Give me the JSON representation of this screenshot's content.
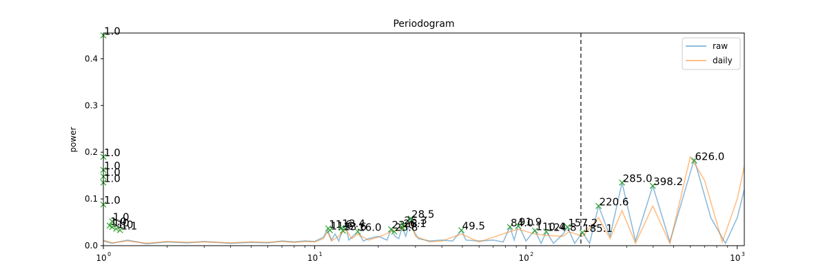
{
  "chart_data": {
    "type": "line",
    "title": "Periodogram",
    "xlabel": "",
    "ylabel": "power",
    "xscale": "log",
    "xlim": [
      1,
      1080
    ],
    "ylim": [
      0,
      0.455
    ],
    "x_ticks": [
      {
        "value": 1,
        "base": "10",
        "exp": "0"
      },
      {
        "value": 10,
        "base": "10",
        "exp": "1"
      },
      {
        "value": 100,
        "base": "10",
        "exp": "2"
      },
      {
        "value": 1000,
        "base": "10",
        "exp": "3"
      }
    ],
    "y_ticks": [
      "0.0",
      "0.1",
      "0.2",
      "0.3",
      "0.4"
    ],
    "legend": {
      "placement": "top-right",
      "entries": [
        {
          "name": "raw",
          "color": "#1f77b4"
        },
        {
          "name": "daily",
          "color": "#ff7f0e"
        }
      ]
    },
    "vline_x": 182,
    "series": [
      {
        "name": "raw",
        "color": "#1f77b4",
        "points": [
          [
            1,
            0.01
          ],
          [
            1.1,
            0.005
          ],
          [
            1.3,
            0.012
          ],
          [
            1.6,
            0.004
          ],
          [
            2,
            0.008
          ],
          [
            2.5,
            0.006
          ],
          [
            3,
            0.009
          ],
          [
            4,
            0.005
          ],
          [
            5,
            0.007
          ],
          [
            6,
            0.006
          ],
          [
            7,
            0.01
          ],
          [
            8,
            0.008
          ],
          [
            9,
            0.01
          ],
          [
            10,
            0.009
          ],
          [
            11,
            0.018
          ],
          [
            11.5,
            0.035
          ],
          [
            12,
            0.012
          ],
          [
            12.5,
            0.025
          ],
          [
            13,
            0.01
          ],
          [
            13.5,
            0.03
          ],
          [
            14,
            0.045
          ],
          [
            14.5,
            0.012
          ],
          [
            15,
            0.018
          ],
          [
            16,
            0.03
          ],
          [
            17,
            0.01
          ],
          [
            18,
            0.015
          ],
          [
            20,
            0.02
          ],
          [
            22,
            0.012
          ],
          [
            23,
            0.035
          ],
          [
            24,
            0.02
          ],
          [
            25,
            0.015
          ],
          [
            26,
            0.04
          ],
          [
            27,
            0.02
          ],
          [
            28.5,
            0.058
          ],
          [
            29.5,
            0.03
          ],
          [
            31,
            0.015
          ],
          [
            35,
            0.01
          ],
          [
            40,
            0.012
          ],
          [
            45,
            0.01
          ],
          [
            49.5,
            0.033
          ],
          [
            52,
            0.012
          ],
          [
            60,
            0.01
          ],
          [
            70,
            0.012
          ],
          [
            78,
            0.008
          ],
          [
            84,
            0.04
          ],
          [
            88,
            0.012
          ],
          [
            92,
            0.045
          ],
          [
            100,
            0.01
          ],
          [
            110,
            0.033
          ],
          [
            118,
            0.005
          ],
          [
            124.8,
            0.03
          ],
          [
            135,
            0.005
          ],
          [
            150,
            0.025
          ],
          [
            157.2,
            0.04
          ],
          [
            170,
            0.005
          ],
          [
            185.1,
            0.028
          ],
          [
            200,
            0.005
          ],
          [
            220.6,
            0.085
          ],
          [
            250,
            0.02
          ],
          [
            285,
            0.135
          ],
          [
            330,
            0.01
          ],
          [
            398.2,
            0.128
          ],
          [
            480,
            0.008
          ],
          [
            626,
            0.185
          ],
          [
            750,
            0.06
          ],
          [
            880,
            0.005
          ],
          [
            1000,
            0.06
          ],
          [
            1080,
            0.12
          ]
        ]
      },
      {
        "name": "daily",
        "color": "#ff7f0e",
        "points": [
          [
            1,
            0.012
          ],
          [
            1.1,
            0.006
          ],
          [
            1.3,
            0.01
          ],
          [
            1.6,
            0.005
          ],
          [
            2,
            0.009
          ],
          [
            2.5,
            0.007
          ],
          [
            3,
            0.008
          ],
          [
            4,
            0.006
          ],
          [
            5,
            0.008
          ],
          [
            6,
            0.007
          ],
          [
            7,
            0.009
          ],
          [
            8,
            0.007
          ],
          [
            9,
            0.009
          ],
          [
            10,
            0.008
          ],
          [
            11,
            0.015
          ],
          [
            11.5,
            0.03
          ],
          [
            12,
            0.01
          ],
          [
            13,
            0.02
          ],
          [
            14,
            0.035
          ],
          [
            15,
            0.015
          ],
          [
            16,
            0.025
          ],
          [
            18,
            0.012
          ],
          [
            20,
            0.018
          ],
          [
            23,
            0.03
          ],
          [
            26,
            0.035
          ],
          [
            28.5,
            0.05
          ],
          [
            30,
            0.02
          ],
          [
            35,
            0.008
          ],
          [
            40,
            0.01
          ],
          [
            49.5,
            0.025
          ],
          [
            60,
            0.008
          ],
          [
            84,
            0.03
          ],
          [
            92,
            0.035
          ],
          [
            110,
            0.025
          ],
          [
            124.8,
            0.022
          ],
          [
            150,
            0.02
          ],
          [
            160,
            0.03
          ],
          [
            185.1,
            0.02
          ],
          [
            220.6,
            0.06
          ],
          [
            250,
            0.015
          ],
          [
            285,
            0.075
          ],
          [
            330,
            0.005
          ],
          [
            398.2,
            0.085
          ],
          [
            480,
            0.005
          ],
          [
            600,
            0.19
          ],
          [
            700,
            0.14
          ],
          [
            850,
            0.008
          ],
          [
            1000,
            0.1
          ],
          [
            1080,
            0.17
          ]
        ]
      }
    ],
    "peaks": [
      {
        "x": 1.0,
        "y": 0.45,
        "label": "1.0"
      },
      {
        "x": 1.0,
        "y": 0.19,
        "label": "1.0"
      },
      {
        "x": 1.0,
        "y": 0.162,
        "label": "1.0"
      },
      {
        "x": 1.0,
        "y": 0.148,
        "label": "1.0"
      },
      {
        "x": 1.0,
        "y": 0.135,
        "label": "1.0"
      },
      {
        "x": 1.0,
        "y": 0.088,
        "label": "1.0"
      },
      {
        "x": 1.1,
        "y": 0.052,
        "label": "1.0"
      },
      {
        "x": 1.07,
        "y": 0.043,
        "label": "1.0"
      },
      {
        "x": 1.1,
        "y": 0.04,
        "label": "1.0"
      },
      {
        "x": 1.15,
        "y": 0.036,
        "label": "1.0"
      },
      {
        "x": 1.2,
        "y": 0.033,
        "label": "1.1"
      },
      {
        "x": 11.6,
        "y": 0.037,
        "label": "11.6"
      },
      {
        "x": 11.8,
        "y": 0.033,
        "label": "11.6"
      },
      {
        "x": 13.4,
        "y": 0.038,
        "label": "13.4"
      },
      {
        "x": 13.6,
        "y": 0.032,
        "label": "13.6"
      },
      {
        "x": 16.0,
        "y": 0.03,
        "label": "16.0"
      },
      {
        "x": 23.0,
        "y": 0.035,
        "label": "23.0"
      },
      {
        "x": 23.8,
        "y": 0.03,
        "label": "23.8"
      },
      {
        "x": 26.3,
        "y": 0.045,
        "label": "26.3"
      },
      {
        "x": 26.1,
        "y": 0.038,
        "label": "26.1"
      },
      {
        "x": 28.5,
        "y": 0.058,
        "label": "28.5"
      },
      {
        "x": 49.5,
        "y": 0.033,
        "label": "49.5"
      },
      {
        "x": 84.0,
        "y": 0.04,
        "label": "84.0"
      },
      {
        "x": 91.9,
        "y": 0.042,
        "label": "91.9"
      },
      {
        "x": 110.4,
        "y": 0.032,
        "label": "110.4"
      },
      {
        "x": 124.8,
        "y": 0.03,
        "label": "124.8"
      },
      {
        "x": 157.2,
        "y": 0.04,
        "label": "157.2"
      },
      {
        "x": 185.1,
        "y": 0.028,
        "label": "185.1"
      },
      {
        "x": 220.6,
        "y": 0.085,
        "label": "220.6"
      },
      {
        "x": 285.0,
        "y": 0.135,
        "label": "285.0"
      },
      {
        "x": 398.2,
        "y": 0.128,
        "label": "398.2"
      },
      {
        "x": 626.0,
        "y": 0.182,
        "label": "626.0"
      }
    ],
    "marker_color": "#2ca02c"
  }
}
